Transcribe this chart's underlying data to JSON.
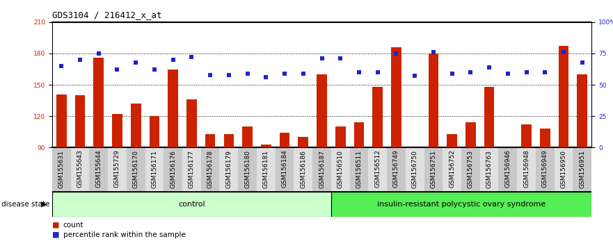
{
  "title": "GDS3104 / 216412_x_at",
  "samples": [
    "GSM155631",
    "GSM155643",
    "GSM155644",
    "GSM155729",
    "GSM156170",
    "GSM156171",
    "GSM156176",
    "GSM156177",
    "GSM156178",
    "GSM156179",
    "GSM156180",
    "GSM156181",
    "GSM156184",
    "GSM156186",
    "GSM156187",
    "GSM156510",
    "GSM156511",
    "GSM156512",
    "GSM156749",
    "GSM156750",
    "GSM156751",
    "GSM156752",
    "GSM156753",
    "GSM156763",
    "GSM156946",
    "GSM156948",
    "GSM156949",
    "GSM156950",
    "GSM156951"
  ],
  "counts": [
    141,
    140,
    176,
    122,
    132,
    120,
    165,
    136,
    103,
    103,
    110,
    93,
    104,
    100,
    160,
    110,
    114,
    148,
    186,
    90,
    180,
    103,
    114,
    148,
    90,
    112,
    108,
    187,
    160
  ],
  "percentiles_pct": [
    65,
    70,
    75,
    62,
    68,
    62,
    70,
    72,
    58,
    58,
    59,
    56,
    59,
    59,
    71,
    71,
    60,
    60,
    75,
    57,
    76,
    59,
    60,
    64,
    59,
    60,
    60,
    76,
    68
  ],
  "group_control_count": 15,
  "control_label": "control",
  "disease_label": "insulin-resistant polycystic ovary syndrome",
  "bar_color": "#cc2200",
  "dot_color": "#2222cc",
  "ylim_left": [
    90,
    210
  ],
  "yticks_left": [
    90,
    120,
    150,
    180,
    210
  ],
  "ylim_right": [
    0,
    100
  ],
  "yticks_right": [
    0,
    25,
    50,
    75,
    100
  ],
  "ytick_right_labels": [
    "0",
    "25",
    "50",
    "75",
    "100%"
  ],
  "grid_lines": [
    120,
    150,
    180
  ],
  "legend_count": "count",
  "legend_pct": "percentile rank within the sample",
  "bg_white": "#ffffff",
  "bg_gray_dark": "#c8c8c8",
  "bg_gray_light": "#e0e0e0",
  "background_control": "#ccffcc",
  "background_disease": "#55ee55",
  "title_fontsize": 9,
  "tick_fontsize": 6.5,
  "bar_width": 0.55
}
